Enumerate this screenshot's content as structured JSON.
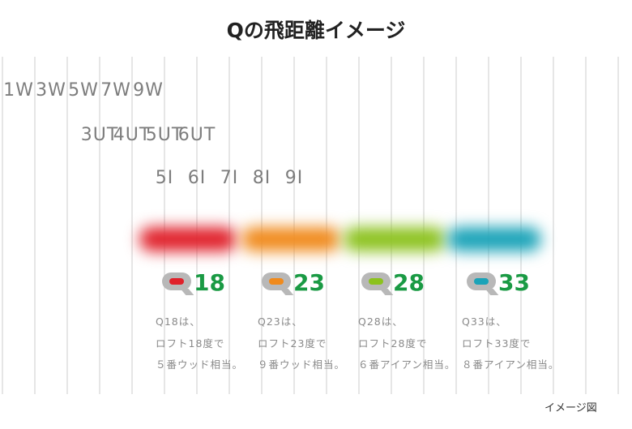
{
  "title": "Qの飛距離イメージ",
  "rows": {
    "woods": [
      {
        "label": "1W",
        "col": 1
      },
      {
        "label": "3W",
        "col": 3
      },
      {
        "label": "5W",
        "col": 5
      },
      {
        "label": "7W",
        "col": 7
      },
      {
        "label": "9W",
        "col": 9
      }
    ],
    "utilities": [
      {
        "label": "3UT",
        "col": 6
      },
      {
        "label": "4UT",
        "col": 8
      },
      {
        "label": "5UT",
        "col": 10
      },
      {
        "label": "6UT",
        "col": 12
      }
    ],
    "irons": [
      {
        "label": "5I",
        "col": 10
      },
      {
        "label": "6I",
        "col": 12
      },
      {
        "label": "7I",
        "col": 14
      },
      {
        "label": "8I",
        "col": 16
      },
      {
        "label": "9I",
        "col": 18
      }
    ]
  },
  "models": [
    {
      "name": "18",
      "color": "#e0202a",
      "desc": [
        "Q18は、",
        "ロフト18度で",
        "５番ウッド相当。"
      ]
    },
    {
      "name": "23",
      "color": "#f08a1c",
      "desc": [
        "Q23は、",
        "ロフト23度で",
        "９番ウッド相当。"
      ]
    },
    {
      "name": "28",
      "color": "#8cc21e",
      "desc": [
        "Q28は、",
        "ロフト28度で",
        "６番アイアン相当。"
      ]
    },
    {
      "name": "33",
      "color": "#1aa3b8",
      "desc": [
        "Q33は、",
        "ロフト33度で",
        "８番アイアン相当。"
      ]
    }
  ],
  "accent_number_color": "#1a9a44",
  "footnote": "イメージ図"
}
